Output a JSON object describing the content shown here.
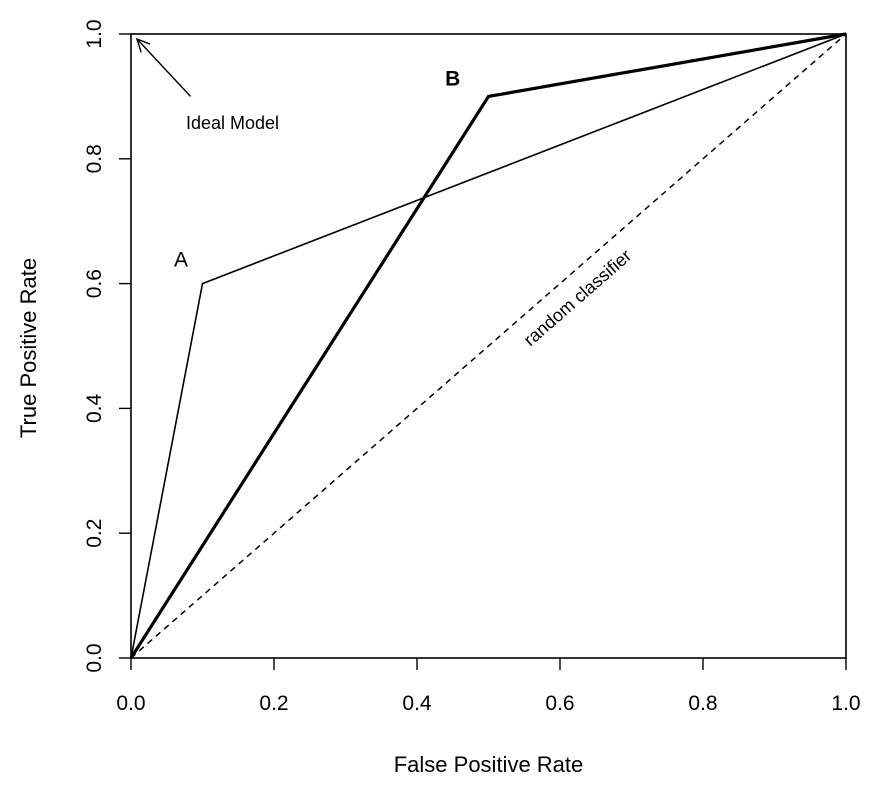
{
  "chart_data": {
    "type": "line",
    "title": "",
    "xlabel": "False Positive Rate",
    "ylabel": "True Positive Rate",
    "xlim": [
      0,
      1
    ],
    "ylim": [
      0,
      1
    ],
    "xticks": [
      "0.0",
      "0.2",
      "0.4",
      "0.6",
      "0.8",
      "1.0"
    ],
    "yticks": [
      "0.0",
      "0.2",
      "0.4",
      "0.6",
      "0.8",
      "1.0"
    ],
    "grid": false,
    "legend": "none",
    "series": [
      {
        "name": "A",
        "style": "solid-thin",
        "x": [
          0.0,
          0.1,
          1.0
        ],
        "y": [
          0.0,
          0.6,
          1.0
        ]
      },
      {
        "name": "B",
        "style": "solid-thick",
        "x": [
          0.0,
          0.5,
          1.0
        ],
        "y": [
          0.0,
          0.9,
          1.0
        ]
      },
      {
        "name": "random classifier",
        "style": "dashed",
        "x": [
          0.0,
          1.0
        ],
        "y": [
          0.0,
          1.0
        ]
      }
    ],
    "annotations": [
      {
        "text": "Ideal Model",
        "arrow_from": [
          0.1,
          0.9
        ],
        "arrow_to": [
          0.0,
          1.0
        ]
      },
      {
        "text": "A",
        "at": [
          0.07,
          0.64
        ]
      },
      {
        "text": "B",
        "at": [
          0.45,
          0.93
        ]
      },
      {
        "text": "random classifier",
        "at": [
          0.63,
          0.57
        ]
      }
    ],
    "colors": {
      "line": "#000000",
      "background": "#ffffff"
    }
  }
}
